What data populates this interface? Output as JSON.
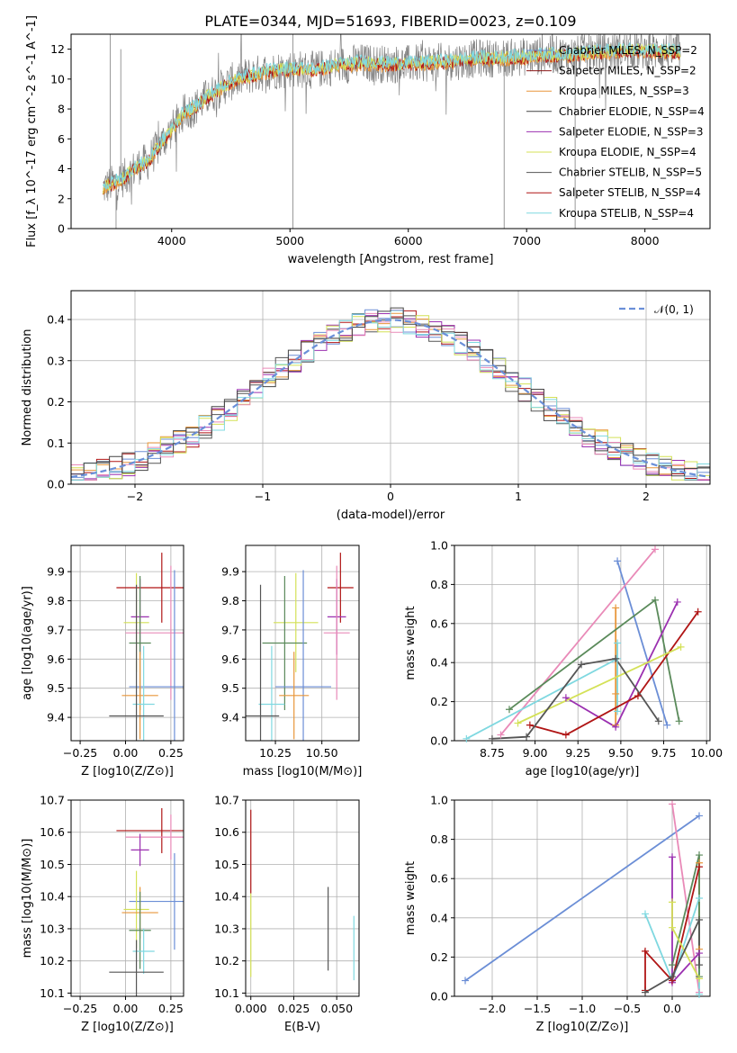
{
  "figure_title": "PLATE=0344, MJD=51693, FIBERID=0023, z=0.109",
  "colors": {
    "Chabrier MILES": "#6b8ed6",
    "Salpeter MILES": "#8b1a1a",
    "Kroupa MILES": "#e8963a",
    "Chabrier ELODIE": "#444444",
    "Salpeter ELODIE": "#9b30b0",
    "Kroupa ELODIE": "#d4e157",
    "Chabrier STELIB": "#555555",
    "Salpeter STELIB": "#b01515",
    "Kroupa STELIB": "#7fd8e0",
    "pink": "#e98ab8",
    "green": "#5a8a5a"
  },
  "chart_data": [
    {
      "type": "line",
      "title": "PLATE=0344, MJD=51693, FIBERID=0023, z=0.109",
      "xlabel": "wavelength [Angstrom, rest frame]",
      "ylabel": "Flux [f_λ 10^-17 erg cm^-2 s^-1 A^-1]",
      "xlim": [
        3150,
        8550
      ],
      "ylim": [
        0,
        13
      ],
      "xticks": [
        "4000",
        "5000",
        "6000",
        "7000",
        "8000"
      ],
      "yticks": [
        "0",
        "2",
        "4",
        "6",
        "8",
        "10",
        "12"
      ],
      "grid": false,
      "legend_position": "top-right",
      "legend": [
        "Chabrier MILES, N_SSP=2",
        "Salpeter MILES, N_SSP=2",
        "Kroupa MILES, N_SSP=3",
        "Chabrier ELODIE, N_SSP=4",
        "Salpeter ELODIE, N_SSP=3",
        "Kroupa ELODIE, N_SSP=4",
        "Chabrier STELIB, N_SSP=5",
        "Salpeter STELIB, N_SSP=4",
        "Kroupa STELIB, N_SSP=4"
      ],
      "continuum": {
        "x": [
          3420,
          3600,
          3700,
          3800,
          3900,
          4000,
          4100,
          4200,
          4300,
          4400,
          4500,
          4600,
          4800,
          5000,
          5200,
          5400,
          5600,
          5800,
          6000,
          6200,
          6400,
          6600,
          6800,
          7000,
          7200,
          7400,
          7600,
          7800,
          8000,
          8300
        ],
        "y": [
          2.7,
          3.4,
          4.1,
          4.5,
          5.6,
          6.6,
          7.7,
          8.1,
          8.8,
          9.3,
          9.8,
          10.1,
          10.5,
          10.7,
          10.6,
          10.9,
          11.1,
          11.0,
          11.0,
          11.1,
          11.2,
          11.4,
          11.4,
          11.5,
          11.6,
          11.6,
          11.8,
          11.9,
          11.9,
          11.8
        ]
      }
    },
    {
      "type": "bar",
      "xlabel": "(data-model)/error",
      "ylabel": "Normed distribution",
      "xlim": [
        -2.5,
        2.5
      ],
      "ylim": [
        0,
        0.47
      ],
      "xticks": [
        "−2",
        "−1",
        "0",
        "1",
        "2"
      ],
      "yticks": [
        "0.0",
        "0.1",
        "0.2",
        "0.3",
        "0.4"
      ],
      "grid": true,
      "legend_position": "top-right",
      "legend": [
        "𝒩(0, 1)"
      ],
      "model_curve": "N(0,1)"
    },
    {
      "type": "scatter",
      "xlabel": "Z [log10(Z/Z⊙)]",
      "ylabel": "age [log10(age/yr)]",
      "xlim": [
        -0.3,
        0.32
      ],
      "ylim": [
        9.32,
        9.99
      ],
      "xticks": [
        "−0.25",
        "0.00",
        "0.25"
      ],
      "yticks": [
        "9.4",
        "9.5",
        "9.6",
        "9.7",
        "9.8",
        "9.9"
      ],
      "grid": true,
      "points": [
        {
          "x": 0.2,
          "y": 9.845,
          "xerr": 0.25,
          "yerr": 0.12,
          "color": "Salpeter STELIB"
        },
        {
          "x": 0.08,
          "y": 9.745,
          "xerr": 0.05,
          "yerr": 0.13,
          "color": "Salpeter ELODIE"
        },
        {
          "x": 0.06,
          "y": 9.725,
          "xerr": 0.07,
          "yerr": 0.17,
          "color": "Kroupa ELODIE"
        },
        {
          "x": 0.25,
          "y": 9.69,
          "xerr": 0.25,
          "yerr": 0.23,
          "color": "pink"
        },
        {
          "x": 0.08,
          "y": 9.655,
          "xerr": 0.06,
          "yerr": 0.23,
          "color": "green"
        },
        {
          "x": 0.27,
          "y": 9.505,
          "xerr": 0.25,
          "yerr": 0.4,
          "color": "Chabrier MILES"
        },
        {
          "x": 0.08,
          "y": 9.475,
          "xerr": 0.1,
          "yerr": 0.15,
          "color": "Kroupa MILES"
        },
        {
          "x": 0.1,
          "y": 9.445,
          "xerr": 0.06,
          "yerr": 0.2,
          "color": "Kroupa STELIB"
        },
        {
          "x": 0.06,
          "y": 9.405,
          "xerr": 0.15,
          "yerr": 0.45,
          "color": "Chabrier STELIB"
        }
      ]
    },
    {
      "type": "scatter",
      "xlabel": "mass [log10(M/M⊙)]",
      "ylabel": "",
      "xlim": [
        10.09,
        10.7
      ],
      "ylim": [
        9.32,
        9.99
      ],
      "xticks": [
        "10.25",
        "10.50"
      ],
      "yticks": [
        "9.4",
        "9.5",
        "9.6",
        "9.7",
        "9.8",
        "9.9"
      ],
      "grid": true,
      "points": [
        {
          "x": 10.6,
          "y": 9.845,
          "xerr": 0.07,
          "yerr": 0.12,
          "color": "Salpeter STELIB"
        },
        {
          "x": 10.58,
          "y": 9.745,
          "xerr": 0.05,
          "yerr": 0.13,
          "color": "Salpeter ELODIE"
        },
        {
          "x": 10.36,
          "y": 9.725,
          "xerr": 0.12,
          "yerr": 0.17,
          "color": "Kroupa ELODIE"
        },
        {
          "x": 10.58,
          "y": 9.69,
          "xerr": 0.07,
          "yerr": 0.23,
          "color": "pink"
        },
        {
          "x": 10.3,
          "y": 9.655,
          "xerr": 0.12,
          "yerr": 0.23,
          "color": "green"
        },
        {
          "x": 10.4,
          "y": 9.505,
          "xerr": 0.15,
          "yerr": 0.4,
          "color": "Chabrier MILES"
        },
        {
          "x": 10.35,
          "y": 9.475,
          "xerr": 0.08,
          "yerr": 0.15,
          "color": "Kroupa MILES"
        },
        {
          "x": 10.23,
          "y": 9.445,
          "xerr": 0.07,
          "yerr": 0.2,
          "color": "Kroupa STELIB"
        },
        {
          "x": 10.17,
          "y": 9.405,
          "xerr": 0.1,
          "yerr": 0.45,
          "color": "Chabrier STELIB"
        }
      ]
    },
    {
      "type": "line",
      "xlabel": "age [log10(age/yr)]",
      "ylabel": "mass weight",
      "xlim": [
        8.53,
        10.02
      ],
      "ylim": [
        0,
        1
      ],
      "xticks": [
        "8.75",
        "9.00",
        "9.25",
        "9.50",
        "9.75",
        "10.00"
      ],
      "yticks": [
        "0.0",
        "0.2",
        "0.4",
        "0.6",
        "0.8",
        "1.0"
      ],
      "grid": true,
      "series": [
        {
          "color": "Chabrier MILES",
          "x": [
            9.48,
            9.77
          ],
          "y": [
            0.92,
            0.08
          ]
        },
        {
          "color": "pink",
          "x": [
            8.8,
            9.7
          ],
          "y": [
            0.03,
            0.98
          ]
        },
        {
          "color": "Kroupa STELIB",
          "x": [
            8.6,
            9.48,
            9.48,
            9.48
          ],
          "y": [
            0.01,
            0.42,
            0.5,
            0.15
          ]
        },
        {
          "color": "Kroupa MILES",
          "x": [
            9.47,
            9.47,
            9.47
          ],
          "y": [
            0.68,
            0.24,
            0.08
          ]
        },
        {
          "color": "green",
          "x": [
            8.85,
            9.7,
            9.84
          ],
          "y": [
            0.16,
            0.72,
            0.1
          ]
        },
        {
          "color": "Salpeter ELODIE",
          "x": [
            9.18,
            9.47,
            9.83
          ],
          "y": [
            0.22,
            0.07,
            0.71
          ]
        },
        {
          "color": "Salpeter STELIB",
          "x": [
            8.97,
            9.18,
            9.6,
            9.95
          ],
          "y": [
            0.08,
            0.03,
            0.23,
            0.66
          ]
        },
        {
          "color": "Kroupa ELODIE",
          "x": [
            8.9,
            9.85
          ],
          "y": [
            0.09,
            0.48
          ]
        },
        {
          "color": "Chabrier STELIB",
          "x": [
            8.75,
            8.95,
            9.27,
            9.47,
            9.72
          ],
          "y": [
            0.01,
            0.02,
            0.39,
            0.42,
            0.1
          ]
        }
      ]
    },
    {
      "type": "scatter",
      "xlabel": "Z [log10(Z/Z⊙)]",
      "ylabel": "mass [log10(M/M⊙)]",
      "xlim": [
        -0.3,
        0.32
      ],
      "ylim": [
        10.09,
        10.7
      ],
      "xticks": [
        "−0.25",
        "0.00",
        "0.25"
      ],
      "yticks": [
        "10.1",
        "10.2",
        "10.3",
        "10.4",
        "10.5",
        "10.6",
        "10.7"
      ],
      "grid": true,
      "points": [
        {
          "x": 0.2,
          "y": 10.605,
          "xerr": 0.25,
          "yerr": 0.07,
          "color": "Salpeter STELIB"
        },
        {
          "x": 0.25,
          "y": 10.585,
          "xerr": 0.25,
          "yerr": 0.07,
          "color": "pink"
        },
        {
          "x": 0.08,
          "y": 10.545,
          "xerr": 0.05,
          "yerr": 0.05,
          "color": "Salpeter ELODIE"
        },
        {
          "x": 0.27,
          "y": 10.385,
          "xerr": 0.25,
          "yerr": 0.15,
          "color": "Chabrier MILES"
        },
        {
          "x": 0.06,
          "y": 10.36,
          "xerr": 0.07,
          "yerr": 0.12,
          "color": "Kroupa ELODIE"
        },
        {
          "x": 0.08,
          "y": 10.35,
          "xerr": 0.1,
          "yerr": 0.08,
          "color": "Kroupa MILES"
        },
        {
          "x": 0.08,
          "y": 10.295,
          "xerr": 0.06,
          "yerr": 0.12,
          "color": "green"
        },
        {
          "x": 0.1,
          "y": 10.23,
          "xerr": 0.06,
          "yerr": 0.07,
          "color": "Kroupa STELIB"
        },
        {
          "x": 0.06,
          "y": 10.165,
          "xerr": 0.15,
          "yerr": 0.1,
          "color": "Chabrier STELIB"
        }
      ]
    },
    {
      "type": "scatter",
      "xlabel": "E(B-V)",
      "ylabel": "",
      "xlim": [
        -0.003,
        0.063
      ],
      "ylim": [
        10.09,
        10.7
      ],
      "xticks": [
        "0.000",
        "0.025",
        "0.050"
      ],
      "yticks": [
        "10.1",
        "10.2",
        "10.3",
        "10.4",
        "10.5",
        "10.6",
        "10.7"
      ],
      "grid": true,
      "points": [
        {
          "x": 0.0,
          "y": 10.54,
          "xerr": 0,
          "yerr": 0.13,
          "color": "Salpeter STELIB"
        },
        {
          "x": 0.0,
          "y": 10.28,
          "xerr": 0,
          "yerr": 0.13,
          "color": "Kroupa ELODIE"
        },
        {
          "x": 0.045,
          "y": 10.3,
          "xerr": 0,
          "yerr": 0.13,
          "color": "Chabrier STELIB"
        },
        {
          "x": 0.06,
          "y": 10.24,
          "xerr": 0,
          "yerr": 0.1,
          "color": "Kroupa STELIB"
        }
      ]
    },
    {
      "type": "line",
      "xlabel": "Z [log10(Z/Z⊙)]",
      "ylabel": "mass weight",
      "xlim": [
        -2.42,
        0.42
      ],
      "ylim": [
        0,
        1
      ],
      "xticks": [
        "−2.0",
        "−1.5",
        "−1.0",
        "−0.5",
        "0.0"
      ],
      "yticks": [
        "0.0",
        "0.2",
        "0.4",
        "0.6",
        "0.8",
        "1.0"
      ],
      "grid": true,
      "series": [
        {
          "color": "Chabrier MILES",
          "x": [
            -2.3,
            0.3
          ],
          "y": [
            0.08,
            0.92
          ]
        },
        {
          "color": "pink",
          "x": [
            0.0,
            0.3
          ],
          "y": [
            0.98,
            0.02
          ]
        },
        {
          "color": "Kroupa STELIB",
          "x": [
            -0.3,
            0.0,
            0.3,
            0.3
          ],
          "y": [
            0.42,
            0.08,
            0.5,
            0.01
          ]
        },
        {
          "color": "Kroupa MILES",
          "x": [
            0.3,
            0.3
          ],
          "y": [
            0.68,
            0.24
          ]
        },
        {
          "color": "green",
          "x": [
            0.0,
            0.3,
            0.3
          ],
          "y": [
            0.16,
            0.72,
            0.1
          ]
        },
        {
          "color": "Salpeter ELODIE",
          "x": [
            0.0,
            0.0,
            0.3
          ],
          "y": [
            0.71,
            0.07,
            0.22
          ]
        },
        {
          "color": "Salpeter STELIB",
          "x": [
            -0.3,
            -0.3,
            0.0,
            0.3
          ],
          "y": [
            0.03,
            0.23,
            0.08,
            0.66
          ]
        },
        {
          "color": "Kroupa ELODIE",
          "x": [
            0.0,
            0.0,
            0.3
          ],
          "y": [
            0.48,
            0.35,
            0.09
          ]
        },
        {
          "color": "Chabrier STELIB",
          "x": [
            -0.3,
            0.0,
            0.3,
            0.3
          ],
          "y": [
            0.02,
            0.1,
            0.39,
            0.16
          ]
        }
      ]
    }
  ]
}
